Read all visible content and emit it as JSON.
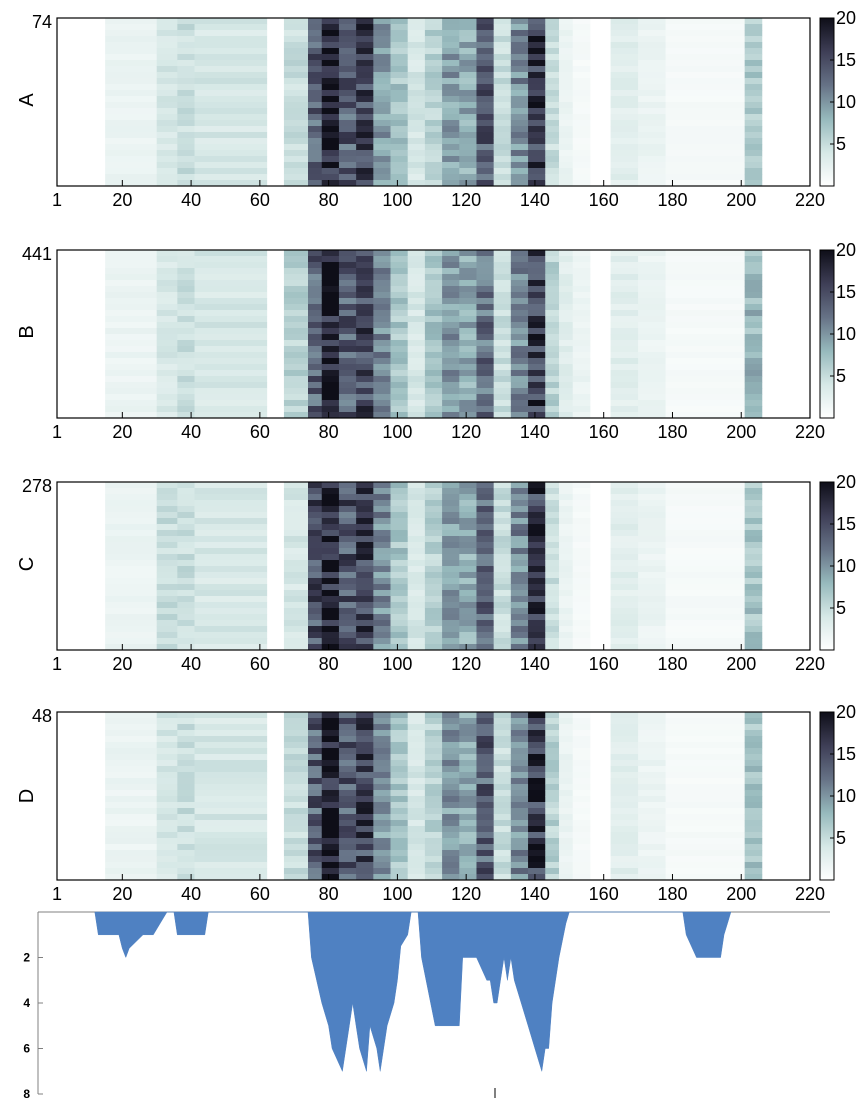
{
  "chart_data": [
    {
      "type": "heatmap",
      "panel": "A",
      "ylabel": "A",
      "rows": 74,
      "ytick_top": "74",
      "xlim": [
        1,
        220
      ],
      "xticks": [
        "1",
        "20",
        "40",
        "60",
        "80",
        "100",
        "120",
        "140",
        "160",
        "180",
        "200",
        "220"
      ],
      "colorbar": {
        "min": 0,
        "max": 20,
        "ticks": [
          "5",
          "10",
          "15",
          "20"
        ]
      },
      "xpositions": [
        1,
        15,
        30,
        36,
        41,
        62,
        67,
        74,
        78,
        83,
        88,
        93,
        98,
        103,
        108,
        113,
        118,
        123,
        128,
        133,
        138,
        143,
        147,
        151,
        156,
        162,
        170,
        178,
        201
      ],
      "column_profile": [
        0,
        2,
        4,
        5,
        4,
        0,
        5,
        14,
        19,
        14,
        16,
        10,
        7,
        4,
        6,
        10,
        9,
        14,
        5,
        11,
        17,
        5,
        2,
        1,
        0,
        3,
        2,
        1,
        7
      ]
    },
    {
      "type": "heatmap",
      "panel": "B",
      "ylabel": "B",
      "rows": 441,
      "ytick_top": "441",
      "xlim": [
        1,
        220
      ],
      "xticks": [
        "1",
        "20",
        "40",
        "60",
        "80",
        "100",
        "120",
        "140",
        "160",
        "180",
        "200",
        "220"
      ],
      "colorbar": {
        "min": 0,
        "max": 20,
        "ticks": [
          "5",
          "10",
          "15",
          "20"
        ]
      },
      "xpositions": [
        1,
        15,
        30,
        36,
        41,
        62,
        67,
        74,
        78,
        83,
        88,
        93,
        98,
        103,
        108,
        113,
        118,
        123,
        128,
        133,
        138,
        143,
        147,
        151,
        156,
        162,
        170,
        178,
        201
      ],
      "column_profile": [
        0,
        2,
        4,
        5,
        4,
        0,
        6,
        14,
        19,
        14,
        16,
        11,
        7,
        4,
        7,
        10,
        9,
        13,
        5,
        11,
        17,
        6,
        3,
        2,
        0,
        3,
        2,
        1,
        8
      ]
    },
    {
      "type": "heatmap",
      "panel": "C",
      "ylabel": "C",
      "rows": 278,
      "ytick_top": "278",
      "xlim": [
        1,
        220
      ],
      "xticks": [
        "1",
        "20",
        "40",
        "60",
        "80",
        "100",
        "120",
        "140",
        "160",
        "180",
        "200",
        "220"
      ],
      "colorbar": {
        "min": 0,
        "max": 20,
        "ticks": [
          "5",
          "10",
          "15",
          "20"
        ]
      },
      "xpositions": [
        1,
        15,
        30,
        36,
        41,
        62,
        67,
        74,
        78,
        83,
        88,
        93,
        98,
        103,
        108,
        113,
        118,
        123,
        128,
        133,
        138,
        143,
        147,
        151,
        156,
        162,
        170,
        178,
        201
      ],
      "column_profile": [
        0,
        2,
        5,
        5,
        4,
        0,
        4,
        15,
        19,
        15,
        16,
        11,
        7,
        4,
        6,
        10,
        9,
        14,
        5,
        11,
        17,
        5,
        2,
        1,
        0,
        3,
        2,
        1,
        7
      ]
    },
    {
      "type": "heatmap",
      "panel": "D",
      "ylabel": "D",
      "rows": 48,
      "ytick_top": "48",
      "xlim": [
        1,
        220
      ],
      "xticks": [
        "1",
        "20",
        "40",
        "60",
        "80",
        "100",
        "120",
        "140",
        "160",
        "180",
        "200",
        "220"
      ],
      "colorbar": {
        "min": 0,
        "max": 20,
        "ticks": [
          "5",
          "10",
          "15",
          "20"
        ]
      },
      "xpositions": [
        1,
        15,
        30,
        36,
        41,
        62,
        67,
        74,
        78,
        83,
        88,
        93,
        98,
        103,
        108,
        113,
        118,
        123,
        128,
        133,
        138,
        143,
        147,
        151,
        156,
        162,
        170,
        178,
        201
      ],
      "column_profile": [
        0,
        2,
        4,
        5,
        4,
        0,
        5,
        14,
        19,
        14,
        16,
        10,
        7,
        4,
        6,
        10,
        9,
        14,
        5,
        11,
        17,
        6,
        2,
        1,
        0,
        3,
        2,
        1,
        7
      ]
    },
    {
      "type": "area",
      "panel": "profile",
      "inverted": true,
      "ylim": [
        0,
        8
      ],
      "yticks": [
        "2",
        "4",
        "6",
        "8"
      ],
      "xlim": [
        1,
        220
      ],
      "x": [
        12,
        13,
        19,
        20,
        21,
        22,
        26,
        29,
        33,
        35,
        36,
        44,
        45,
        74,
        75,
        78,
        80,
        81,
        84,
        86,
        87,
        88,
        89,
        91,
        92,
        94,
        95,
        97,
        99,
        100,
        101,
        103,
        104,
        106,
        107,
        111,
        112,
        115,
        118,
        119,
        123,
        126,
        127,
        128,
        129,
        130,
        131,
        132,
        133,
        134,
        136,
        138,
        140,
        142,
        143,
        144,
        145,
        147,
        149,
        150,
        183,
        184,
        187,
        188,
        194,
        195,
        196,
        197
      ],
      "values": [
        0,
        1,
        1,
        1.6,
        2,
        1.6,
        1,
        1,
        0,
        0,
        1,
        1,
        0,
        0,
        2,
        4,
        5,
        6,
        7,
        5,
        4,
        5,
        6,
        7,
        5,
        6,
        7,
        5,
        4,
        3,
        1.5,
        1,
        0,
        0,
        2,
        5,
        5,
        5,
        5,
        2,
        2,
        3,
        3,
        4,
        4,
        3,
        2,
        3,
        2,
        3,
        4,
        5,
        6,
        7,
        6,
        6,
        4,
        2,
        0.5,
        0,
        0,
        1,
        2,
        2,
        2,
        1,
        0.5,
        0
      ]
    }
  ]
}
